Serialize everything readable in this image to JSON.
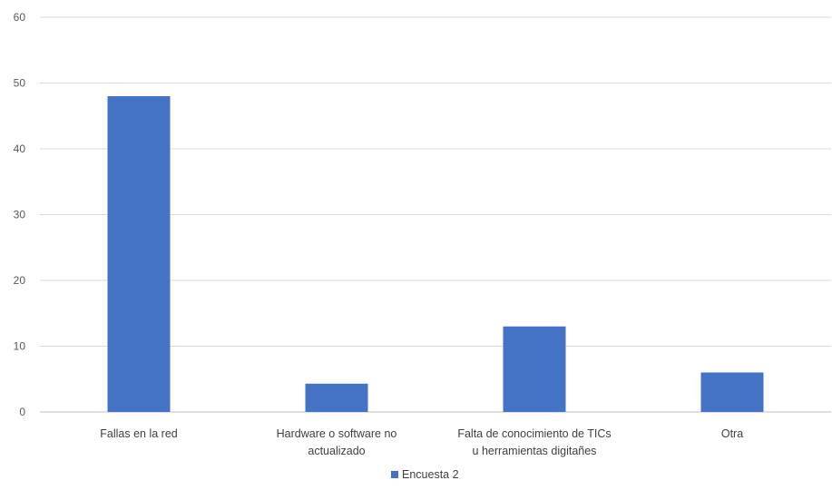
{
  "chart_data": {
    "type": "bar",
    "title": "",
    "xlabel": "",
    "ylabel": "",
    "categories": [
      [
        "Fallas en la red"
      ],
      [
        "Hardware o software no",
        "actualizado"
      ],
      [
        "Falta de conocimiento de TICs",
        "u herramientas digitañes"
      ],
      [
        "Otra"
      ]
    ],
    "series": [
      {
        "name": "Encuesta 2",
        "values": [
          48,
          4.3,
          13,
          6
        ]
      }
    ],
    "ylim": [
      0,
      60
    ],
    "yticks": [
      0,
      10,
      20,
      30,
      40,
      50,
      60
    ],
    "grid": true,
    "legend_position": "bottom",
    "colors": {
      "bar": "#4472C4",
      "grid": "#D9D9D9",
      "axis": "#BFBFBF"
    }
  }
}
